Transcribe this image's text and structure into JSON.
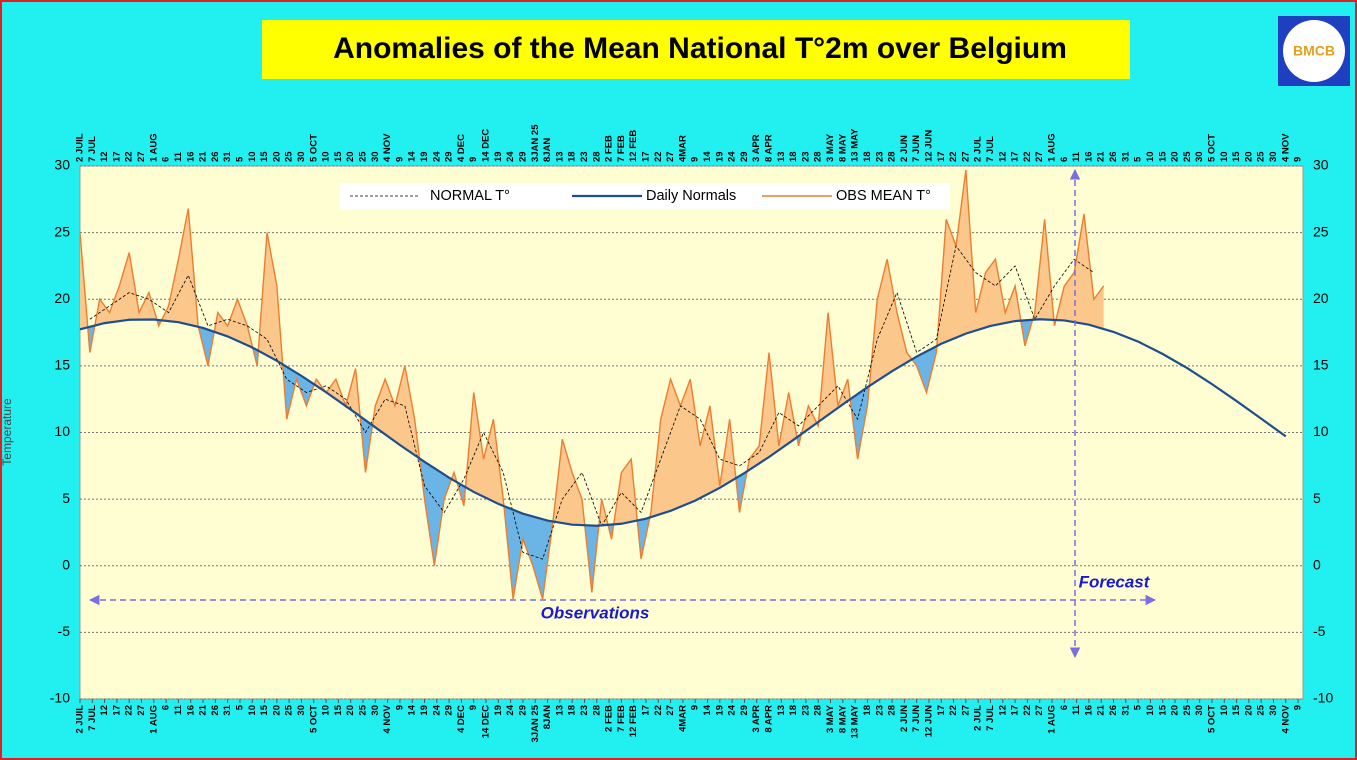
{
  "header": {
    "title": "Anomalies of the Mean National T°2m over Belgium",
    "logo_text": "BMCB"
  },
  "chart_data": {
    "type": "line",
    "y_label": "Temperature",
    "xlim": [
      0,
      497
    ],
    "ylim": [
      -10,
      30
    ],
    "yticks": [
      -10,
      -5,
      0,
      5,
      10,
      15,
      20,
      25,
      30
    ],
    "grid": true,
    "legend": "top",
    "anomaly_colors": {
      "above": "#fbc78a",
      "below": "#6ab4e6"
    },
    "annotations": {
      "observations": "Observations",
      "forecast": "Forecast"
    },
    "xticks": [
      {
        "value": 0,
        "label": "2 JUIL"
      },
      {
        "value": 5,
        "label": "7 JUL"
      },
      {
        "value": 10,
        "label": "12"
      },
      {
        "value": 15,
        "label": "17"
      },
      {
        "value": 20,
        "label": "22"
      },
      {
        "value": 25,
        "label": "27"
      },
      {
        "value": 30,
        "label": "1 AUG"
      },
      {
        "value": 35,
        "label": "6"
      },
      {
        "value": 40,
        "label": "11"
      },
      {
        "value": 45,
        "label": "16"
      },
      {
        "value": 50,
        "label": "21"
      },
      {
        "value": 55,
        "label": "26"
      },
      {
        "value": 60,
        "label": "31"
      },
      {
        "value": 65,
        "label": "5"
      },
      {
        "value": 70,
        "label": "10"
      },
      {
        "value": 75,
        "label": "15"
      },
      {
        "value": 80,
        "label": "20"
      },
      {
        "value": 85,
        "label": "25"
      },
      {
        "value": 90,
        "label": "30"
      },
      {
        "value": 95,
        "label": "5 OCT"
      },
      {
        "value": 100,
        "label": "10"
      },
      {
        "value": 105,
        "label": "15"
      },
      {
        "value": 110,
        "label": "20"
      },
      {
        "value": 115,
        "label": "25"
      },
      {
        "value": 120,
        "label": "30"
      },
      {
        "value": 125,
        "label": "4 NOV"
      },
      {
        "value": 130,
        "label": "9"
      },
      {
        "value": 135,
        "label": "14"
      },
      {
        "value": 140,
        "label": "19"
      },
      {
        "value": 145,
        "label": "24"
      },
      {
        "value": 150,
        "label": "29"
      },
      {
        "value": 155,
        "label": "4 DEC"
      },
      {
        "value": 160,
        "label": "9"
      },
      {
        "value": 165,
        "label": "14 DEC"
      },
      {
        "value": 170,
        "label": "19"
      },
      {
        "value": 175,
        "label": "24"
      },
      {
        "value": 180,
        "label": "29"
      },
      {
        "value": 185,
        "label": "3JAN 25"
      },
      {
        "value": 190,
        "label": "8JAN"
      },
      {
        "value": 195,
        "label": "13"
      },
      {
        "value": 200,
        "label": "18"
      },
      {
        "value": 205,
        "label": "23"
      },
      {
        "value": 210,
        "label": "28"
      },
      {
        "value": 215,
        "label": "2 FEB"
      },
      {
        "value": 220,
        "label": "7 FEB"
      },
      {
        "value": 225,
        "label": "12 FEB"
      },
      {
        "value": 230,
        "label": "17"
      },
      {
        "value": 235,
        "label": "22"
      },
      {
        "value": 240,
        "label": "27"
      },
      {
        "value": 245,
        "label": "4MAR"
      },
      {
        "value": 250,
        "label": "9"
      },
      {
        "value": 255,
        "label": "14"
      },
      {
        "value": 260,
        "label": "19"
      },
      {
        "value": 265,
        "label": "24"
      },
      {
        "value": 270,
        "label": "29"
      },
      {
        "value": 275,
        "label": "3 APR"
      },
      {
        "value": 280,
        "label": "8 APR"
      },
      {
        "value": 285,
        "label": "13"
      },
      {
        "value": 290,
        "label": "18"
      },
      {
        "value": 295,
        "label": "23"
      },
      {
        "value": 300,
        "label": "28"
      },
      {
        "value": 305,
        "label": "3 MAY"
      },
      {
        "value": 310,
        "label": "8 MAY"
      },
      {
        "value": 315,
        "label": "13 MAY"
      },
      {
        "value": 320,
        "label": "18"
      },
      {
        "value": 325,
        "label": "23"
      },
      {
        "value": 330,
        "label": "28"
      },
      {
        "value": 335,
        "label": "2 JUN"
      },
      {
        "value": 340,
        "label": "7 JUN"
      },
      {
        "value": 345,
        "label": "12 JUN"
      },
      {
        "value": 350,
        "label": "17"
      },
      {
        "value": 355,
        "label": "22"
      },
      {
        "value": 360,
        "label": "27"
      },
      {
        "value": 365,
        "label": "2 JUL"
      },
      {
        "value": 370,
        "label": "7 JUL"
      },
      {
        "value": 375,
        "label": "12"
      },
      {
        "value": 380,
        "label": "17"
      },
      {
        "value": 385,
        "label": "22"
      },
      {
        "value": 390,
        "label": "27"
      },
      {
        "value": 395,
        "label": "1 AUG"
      },
      {
        "value": 400,
        "label": "6"
      },
      {
        "value": 405,
        "label": "11"
      },
      {
        "value": 410,
        "label": "16"
      },
      {
        "value": 415,
        "label": "21"
      },
      {
        "value": 420,
        "label": "26"
      },
      {
        "value": 425,
        "label": "31"
      },
      {
        "value": 430,
        "label": "5"
      },
      {
        "value": 435,
        "label": "10"
      },
      {
        "value": 440,
        "label": "15"
      },
      {
        "value": 445,
        "label": "20"
      },
      {
        "value": 450,
        "label": "25"
      },
      {
        "value": 455,
        "label": "30"
      },
      {
        "value": 460,
        "label": "5 OCT"
      },
      {
        "value": 465,
        "label": "10"
      },
      {
        "value": 470,
        "label": "15"
      },
      {
        "value": 475,
        "label": "20"
      },
      {
        "value": 480,
        "label": "25"
      },
      {
        "value": 485,
        "label": "30"
      },
      {
        "value": 490,
        "label": "4 NOV"
      },
      {
        "value": 495,
        "label": "9"
      }
    ],
    "series": [
      {
        "name": "NORMAL T°",
        "color": "#000000",
        "dash": true,
        "x": [
          4,
          12,
          20,
          28,
          36,
          44,
          52,
          60,
          68,
          76,
          84,
          92,
          100,
          108,
          116,
          124,
          132,
          140,
          148,
          156,
          164,
          172,
          180,
          188,
          196,
          204,
          212,
          220,
          228,
          236,
          244,
          252,
          260,
          268,
          276,
          284,
          292,
          300,
          308,
          316,
          324,
          332,
          340,
          348,
          356,
          364,
          372,
          380,
          388,
          396,
          404,
          412
        ],
        "values": [
          18.5,
          19.5,
          20.5,
          20,
          19,
          21.8,
          18,
          18.5,
          18,
          17,
          14,
          13,
          13.5,
          12.5,
          10,
          12.5,
          12,
          6,
          4,
          6.5,
          10,
          7,
          1,
          0.5,
          5,
          7,
          3,
          5.5,
          4,
          8,
          12,
          11,
          8,
          7.5,
          8.5,
          11.5,
          10.5,
          12,
          13.5,
          11,
          17,
          20.5,
          16,
          17,
          24,
          22,
          21,
          22.5,
          18.5,
          21,
          23,
          22
        ]
      },
      {
        "name": "Daily Normals",
        "color": "#1f4e8c",
        "normal": true,
        "x": [
          0,
          10,
          20,
          30,
          40,
          50,
          60,
          70,
          80,
          90,
          100,
          110,
          120,
          130,
          140,
          150,
          160,
          170,
          180,
          190,
          200,
          210,
          220,
          230,
          240,
          250,
          260,
          270,
          280,
          290,
          300,
          310,
          320,
          330,
          340,
          350,
          360,
          370,
          380,
          390,
          400,
          410,
          420,
          430,
          440,
          450,
          460,
          470,
          480,
          490
        ],
        "values": [
          17.74,
          18.21,
          18.46,
          18.48,
          18.28,
          17.85,
          17.21,
          16.38,
          15.38,
          14.25,
          13.02,
          11.72,
          10.39,
          9.06,
          7.8,
          6.61,
          5.54,
          4.64,
          3.91,
          3.39,
          3.08,
          3,
          3.15,
          3.53,
          4.12,
          4.89,
          5.85,
          6.96,
          8.16,
          9.46,
          10.79,
          12.11,
          13.4,
          14.6,
          15.7,
          16.66,
          17.42,
          18,
          18.36,
          18.5,
          18.41,
          18.09,
          17.55,
          16.82,
          15.89,
          14.83,
          13.63,
          12.36,
          11.04,
          9.71
        ]
      },
      {
        "name": "OBS MEAN T°",
        "color": "#ed7d31",
        "observed": true,
        "x": [
          0,
          4,
          8,
          12,
          16,
          20,
          24,
          28,
          32,
          36,
          40,
          44,
          48,
          52,
          56,
          60,
          64,
          68,
          72,
          76,
          80,
          84,
          88,
          92,
          96,
          100,
          104,
          108,
          112,
          116,
          120,
          124,
          128,
          132,
          136,
          140,
          144,
          148,
          152,
          156,
          160,
          164,
          168,
          172,
          176,
          180,
          184,
          188,
          192,
          196,
          200,
          204,
          208,
          212,
          216,
          220,
          224,
          228,
          232,
          236,
          240,
          244,
          248,
          252,
          256,
          260,
          264,
          268,
          272,
          276,
          280,
          284,
          288,
          292,
          296,
          300,
          304,
          308,
          312,
          316,
          320,
          324,
          328,
          332,
          336,
          340,
          344,
          348,
          352,
          356,
          360,
          364,
          368,
          372,
          376,
          380,
          384,
          388,
          392,
          396,
          400,
          404,
          408,
          412,
          416
        ],
        "values": [
          25,
          16,
          20,
          19,
          21,
          23.5,
          19,
          20.5,
          18,
          19.5,
          23,
          26.8,
          18,
          15,
          19,
          18,
          20,
          18,
          15,
          25,
          21,
          11,
          14,
          12,
          14,
          13,
          14,
          12,
          14.8,
          7,
          12,
          14,
          12,
          15,
          11,
          5,
          0,
          5,
          7,
          4.5,
          13,
          8,
          11,
          5,
          -2.5,
          2,
          0,
          -2.5,
          3,
          9.5,
          7,
          5,
          -2,
          5,
          2,
          7,
          8,
          0.5,
          4,
          11,
          14,
          12,
          14,
          9,
          12,
          6,
          11,
          4,
          8,
          9,
          16,
          9,
          13,
          9,
          12,
          10.5,
          19,
          12,
          14,
          8,
          12,
          20,
          23,
          19,
          16,
          15,
          13,
          16,
          26,
          24,
          29.7,
          19,
          22,
          23,
          19,
          21,
          16.5,
          19,
          26,
          18,
          21,
          22,
          26.4,
          20,
          21
        ]
      }
    ]
  }
}
